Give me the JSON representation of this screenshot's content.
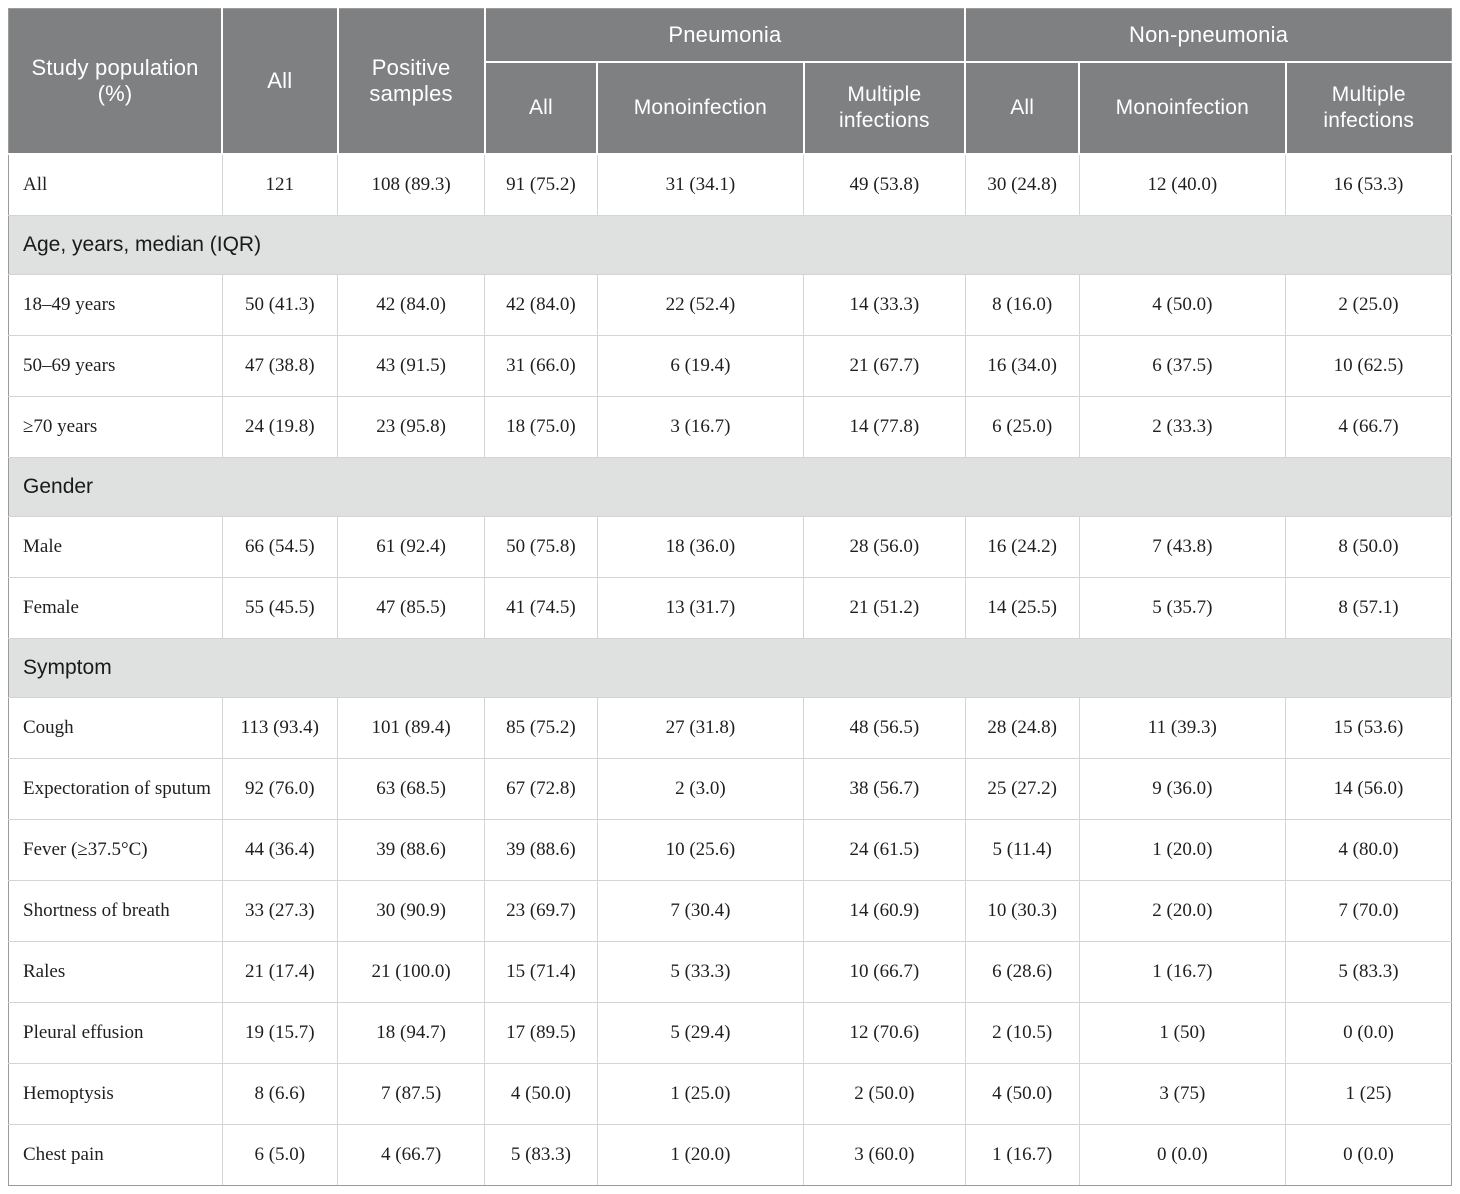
{
  "table": {
    "title_semantic": "Study population characteristics table",
    "colors": {
      "header_bg": "#7e8081",
      "header_text": "#ffffff",
      "section_bg": "#dfe0e0",
      "body_text": "#1f1f1f",
      "row_border": "#d4d4d4",
      "outer_border": "#9b9b9b"
    },
    "header": {
      "study_population": "Study population (%)",
      "all": "All",
      "positive_samples": "Positive samples",
      "pneumonia": "Pneumonia",
      "non_pneumonia": "Non-pneumonia",
      "sub": {
        "all": "All",
        "monoinfection": "Monoinfection",
        "multiple_infections": "Multiple infections"
      }
    },
    "rows": [
      {
        "type": "data",
        "label": "All",
        "values": [
          "121",
          "108 (89.3)",
          "91 (75.2)",
          "31 (34.1)",
          "49 (53.8)",
          "30 (24.8)",
          "12 (40.0)",
          "16 (53.3)"
        ]
      },
      {
        "type": "section",
        "label": "Age, years, median (IQR)"
      },
      {
        "type": "data",
        "label": "18–49 years",
        "values": [
          "50 (41.3)",
          "42 (84.0)",
          "42 (84.0)",
          "22 (52.4)",
          "14 (33.3)",
          "8 (16.0)",
          "4 (50.0)",
          "2 (25.0)"
        ]
      },
      {
        "type": "data",
        "label": "50–69 years",
        "values": [
          "47 (38.8)",
          "43 (91.5)",
          "31 (66.0)",
          "6 (19.4)",
          "21 (67.7)",
          "16 (34.0)",
          "6 (37.5)",
          "10 (62.5)"
        ]
      },
      {
        "type": "data",
        "label": "≥70 years",
        "values": [
          "24 (19.8)",
          "23 (95.8)",
          "18 (75.0)",
          "3 (16.7)",
          "14 (77.8)",
          "6 (25.0)",
          "2 (33.3)",
          "4 (66.7)"
        ]
      },
      {
        "type": "section",
        "label": "Gender"
      },
      {
        "type": "data",
        "label": "Male",
        "values": [
          "66 (54.5)",
          "61 (92.4)",
          "50 (75.8)",
          "18 (36.0)",
          "28 (56.0)",
          "16 (24.2)",
          "7 (43.8)",
          "8 (50.0)"
        ]
      },
      {
        "type": "data",
        "label": "Female",
        "values": [
          "55 (45.5)",
          "47 (85.5)",
          "41 (74.5)",
          "13 (31.7)",
          "21 (51.2)",
          "14 (25.5)",
          "5 (35.7)",
          "8 (57.1)"
        ]
      },
      {
        "type": "section",
        "label": "Symptom"
      },
      {
        "type": "data",
        "label": "Cough",
        "values": [
          "113 (93.4)",
          "101 (89.4)",
          "85 (75.2)",
          "27 (31.8)",
          "48 (56.5)",
          "28 (24.8)",
          "11 (39.3)",
          "15 (53.6)"
        ]
      },
      {
        "type": "data",
        "label": "Expectoration of sputum",
        "values": [
          "92 (76.0)",
          "63 (68.5)",
          "67 (72.8)",
          "2 (3.0)",
          "38 (56.7)",
          "25 (27.2)",
          "9 (36.0)",
          "14 (56.0)"
        ]
      },
      {
        "type": "data",
        "label": "Fever (≥37.5°C)",
        "values": [
          "44 (36.4)",
          "39 (88.6)",
          "39 (88.6)",
          "10 (25.6)",
          "24 (61.5)",
          "5 (11.4)",
          "1 (20.0)",
          "4 (80.0)"
        ]
      },
      {
        "type": "data",
        "label": "Shortness of breath",
        "values": [
          "33 (27.3)",
          "30 (90.9)",
          "23 (69.7)",
          "7 (30.4)",
          "14 (60.9)",
          "10 (30.3)",
          "2 (20.0)",
          "7 (70.0)"
        ]
      },
      {
        "type": "data",
        "label": "Rales",
        "values": [
          "21 (17.4)",
          "21 (100.0)",
          "15 (71.4)",
          "5 (33.3)",
          "10 (66.7)",
          "6 (28.6)",
          "1 (16.7)",
          "5 (83.3)"
        ]
      },
      {
        "type": "data",
        "label": "Pleural effusion",
        "values": [
          "19 (15.7)",
          "18 (94.7)",
          "17 (89.5)",
          "5 (29.4)",
          "12 (70.6)",
          "2 (10.5)",
          "1 (50)",
          "0 (0.0)"
        ]
      },
      {
        "type": "data",
        "label": "Hemoptysis",
        "values": [
          "8 (6.6)",
          "7 (87.5)",
          "4 (50.0)",
          "1 (25.0)",
          "2 (50.0)",
          "4 (50.0)",
          "3 (75)",
          "1 (25)"
        ]
      },
      {
        "type": "data",
        "label": "Chest pain",
        "values": [
          "6 (5.0)",
          "4 (66.7)",
          "5 (83.3)",
          "1 (20.0)",
          "3 (60.0)",
          "1 (16.7)",
          "0 (0.0)",
          "0 (0.0)"
        ]
      }
    ]
  }
}
